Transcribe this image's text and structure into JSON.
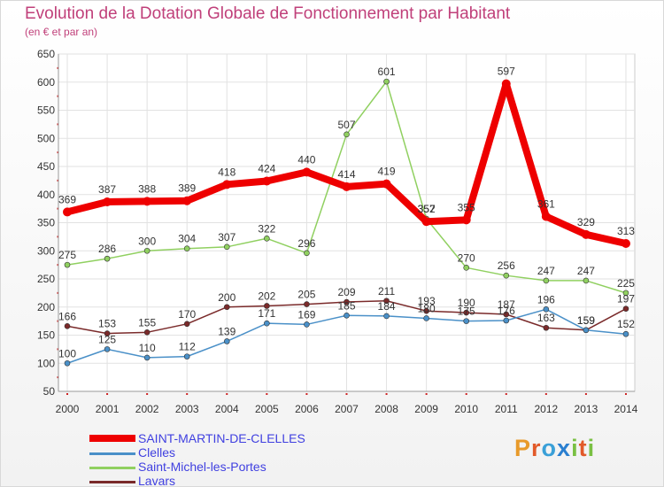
{
  "title": "Evolution de la Dotation Globale de Fonctionnement par Habitant",
  "subtitle": "(en € et par an)",
  "brand": "Proxiti",
  "chart_data": {
    "type": "line",
    "title": "Evolution de la Dotation Globale de Fonctionnement par Habitant",
    "subtitle": "(en € et par an)",
    "xlabel": "",
    "ylabel": "",
    "ylim": [
      50,
      650
    ],
    "yticks": [
      50,
      100,
      150,
      200,
      250,
      300,
      350,
      400,
      450,
      500,
      550,
      600,
      650
    ],
    "grid": true,
    "legend_position": "bottom-left",
    "categories": [
      "2000",
      "2001",
      "2002",
      "2003",
      "2004",
      "2005",
      "2006",
      "2007",
      "2008",
      "2009",
      "2010",
      "2011",
      "2012",
      "2013",
      "2014"
    ],
    "series": [
      {
        "name": "Lavars",
        "color": "#7a2a2a",
        "values": [
          166,
          153,
          155,
          170,
          200,
          202,
          205,
          209,
          211,
          193,
          190,
          187,
          163,
          159,
          197
        ]
      },
      {
        "name": "Clelles",
        "color": "#4a90c8",
        "values": [
          100,
          125,
          110,
          112,
          139,
          171,
          169,
          185,
          184,
          180,
          175,
          176,
          196,
          159,
          152
        ]
      },
      {
        "name": "Saint-Michel-les-Portes",
        "color": "#90d060",
        "values": [
          275,
          286,
          300,
          304,
          307,
          322,
          296,
          507,
          601,
          357,
          270,
          256,
          247,
          247,
          225
        ]
      },
      {
        "name": "SAINT-MARTIN-DE-CLELLES",
        "color": "#ee0000",
        "values": [
          369,
          387,
          388,
          389,
          418,
          424,
          440,
          414,
          419,
          352,
          355,
          597,
          361,
          329,
          313
        ]
      }
    ],
    "legend": [
      "SAINT-MARTIN-DE-CLELLES",
      "Clelles",
      "Saint-Michel-les-Portes",
      "Lavars"
    ]
  }
}
